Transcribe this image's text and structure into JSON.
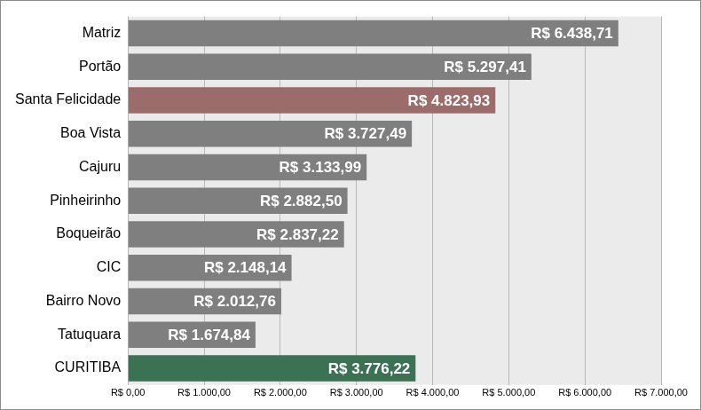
{
  "chart_data": {
    "type": "bar",
    "orientation": "horizontal",
    "categories": [
      "Matriz",
      "Portão",
      "Santa Felicidade",
      "Boa Vista",
      "Cajuru",
      "Pinheirinho",
      "Boqueirão",
      "CIC",
      "Bairro Novo",
      "Tatuquara",
      "CURITIBA"
    ],
    "values": [
      6438.71,
      5297.41,
      4823.93,
      3727.49,
      3133.99,
      2882.5,
      2837.22,
      2148.14,
      2012.76,
      1674.84,
      3776.22
    ],
    "value_labels": [
      "R$ 6.438,71",
      "R$ 5.297,41",
      "R$ 4.823,93",
      "R$ 3.727,49",
      "R$ 3.133,99",
      "R$ 2.882,50",
      "R$ 2.837,22",
      "R$ 2.148,14",
      "R$ 2.012,76",
      "R$ 1.674,84",
      "R$ 3.776,22"
    ],
    "colors": [
      "#7f7f7f",
      "#7f7f7f",
      "#9b6c69",
      "#7f7f7f",
      "#7f7f7f",
      "#7f7f7f",
      "#7f7f7f",
      "#7f7f7f",
      "#7f7f7f",
      "#7f7f7f",
      "#3b7254"
    ],
    "xlim": [
      0,
      7000
    ],
    "xticks": [
      {
        "value": 0,
        "label": "R$ 0,00"
      },
      {
        "value": 1000,
        "label": "R$ 1.000,00"
      },
      {
        "value": 2000,
        "label": "R$ 2.000,00"
      },
      {
        "value": 3000,
        "label": "R$ 3.000,00"
      },
      {
        "value": 4000,
        "label": "R$ 4.000,00"
      },
      {
        "value": 5000,
        "label": "R$ 5.000,00"
      },
      {
        "value": 6000,
        "label": "R$ 6.000,00"
      },
      {
        "value": 7000,
        "label": "R$ 7.000,00"
      }
    ],
    "grid": true,
    "data_labels": true
  }
}
